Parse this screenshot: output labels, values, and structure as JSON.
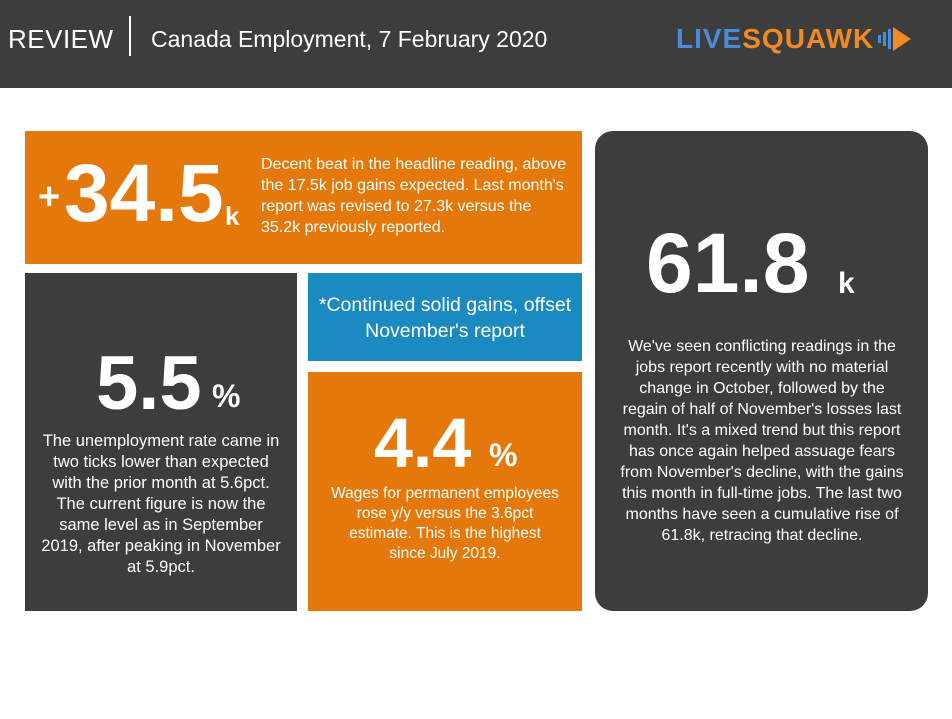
{
  "header": {
    "section": "REVIEW",
    "title": "Canada Employment, 7 February 2020",
    "logo": {
      "part1": "LIVE",
      "part2": "SQUAWK"
    }
  },
  "colors": {
    "orange": "#e5780b",
    "dark": "#3d3d3d",
    "blue": "#1a8ac1",
    "logo_blue": "#4b8bd8",
    "logo_orange": "#f08a24"
  },
  "headline": {
    "sign": "+",
    "value": "34.5",
    "unit": "k",
    "text": "Decent beat in the headline reading, above the 17.5k job gains expected. Last month's report was revised to 27.3k versus the 35.2k previously reported."
  },
  "unemployment": {
    "value": "5.5",
    "unit": "%",
    "text": "The unemployment rate came in two ticks lower than expected with the prior month at 5.6pct. The current figure is now the same level as in September 2019, after peaking in November at 5.9pct."
  },
  "summary": {
    "text": "*Continued solid gains, offset November's report"
  },
  "wages": {
    "value": "4.4",
    "unit": "%",
    "text": "Wages for permanent employees rose y/y versus the 3.6pct estimate. This is the highest since July 2019."
  },
  "cumulative": {
    "value": "61.8",
    "unit": "k",
    "text": "We've seen conflicting readings in the jobs  report recently with no material change in October, followed by the regain of half of November's losses last month. It's a mixed trend but this report has once again helped assuage fears from November's decline, with the gains this month in full-time jobs. The last two months have seen a cumulative rise of 61.8k, retracing that decline."
  }
}
